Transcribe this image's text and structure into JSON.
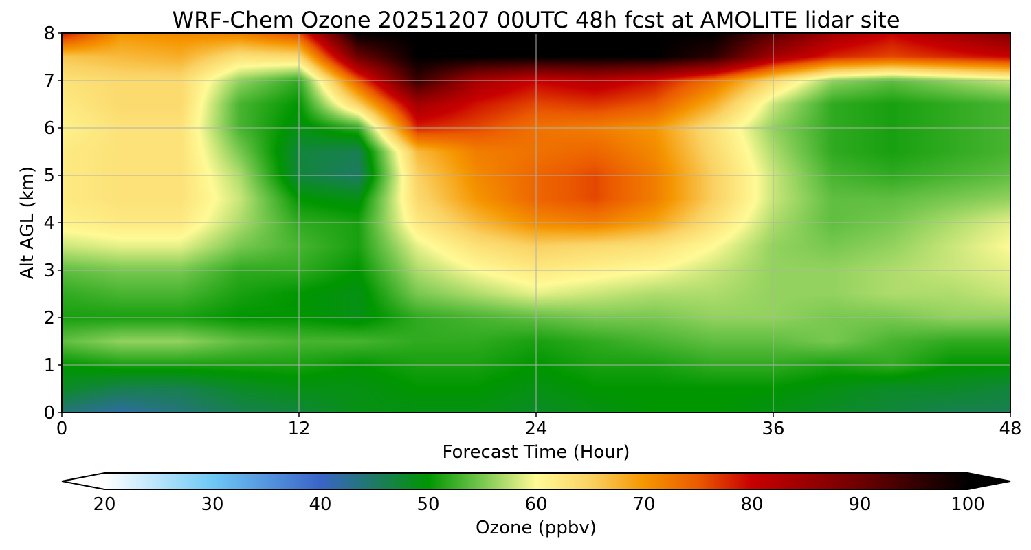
{
  "chart_data": {
    "type": "heatmap",
    "title": "WRF-Chem Ozone  20251207 00UTC 48h fcst at AMOLITE lidar site",
    "xlabel": "Forecast Time (Hour)",
    "ylabel": "Alt AGL (km)",
    "xlim": [
      0,
      48
    ],
    "ylim": [
      0,
      8
    ],
    "xticks": [
      0,
      12,
      24,
      36,
      48
    ],
    "yticks": [
      0,
      1,
      2,
      3,
      4,
      5,
      6,
      7,
      8
    ],
    "grid": true,
    "z_x": [
      0,
      3,
      6,
      9,
      12,
      15,
      18,
      21,
      24,
      27,
      30,
      33,
      36,
      39,
      42,
      45,
      48
    ],
    "z_y": [
      0,
      0.5,
      1,
      1.5,
      2,
      2.5,
      3,
      3.5,
      4,
      4.5,
      5,
      5.5,
      6,
      6.5,
      7,
      7.5,
      8
    ],
    "z": [
      [
        44,
        42,
        44,
        46,
        47,
        49,
        49,
        49,
        48,
        49,
        50,
        50,
        49,
        48,
        47,
        46,
        46
      ],
      [
        48,
        46,
        46,
        48,
        49,
        49,
        50,
        50,
        49,
        50,
        50,
        50,
        50,
        49,
        48,
        48,
        47
      ],
      [
        50,
        51,
        51,
        51,
        51,
        50,
        51,
        51,
        50,
        51,
        51,
        52,
        52,
        51,
        52,
        50,
        50
      ],
      [
        54,
        56,
        56,
        54,
        53,
        53,
        52,
        52,
        51,
        52,
        53,
        54,
        54,
        55,
        53,
        52,
        52
      ],
      [
        51,
        51,
        51,
        50,
        50,
        49,
        52,
        53,
        54,
        55,
        55,
        56,
        56,
        55,
        55,
        56,
        56
      ],
      [
        52,
        53,
        53,
        51,
        50,
        49,
        55,
        57,
        59,
        58,
        57,
        57,
        56,
        56,
        57,
        57,
        58
      ],
      [
        54,
        55,
        55,
        52,
        52,
        50,
        57,
        60,
        62,
        61,
        60,
        58,
        56,
        56,
        57,
        58,
        59
      ],
      [
        58,
        59,
        59,
        55,
        53,
        51,
        59,
        63,
        65,
        64,
        63,
        60,
        56,
        55,
        56,
        58,
        60
      ],
      [
        61,
        62,
        62,
        57,
        52,
        51,
        62,
        67,
        71,
        72,
        69,
        63,
        57,
        54,
        55,
        57,
        59
      ],
      [
        62,
        63,
        63,
        58,
        50,
        49,
        64,
        70,
        74,
        76,
        72,
        65,
        58,
        54,
        54,
        55,
        56
      ],
      [
        62,
        63,
        63,
        57,
        47,
        45,
        65,
        71,
        74,
        76,
        72,
        65,
        58,
        53,
        52,
        53,
        54
      ],
      [
        62,
        63,
        63,
        55,
        47,
        46,
        67,
        72,
        73,
        74,
        71,
        64,
        57,
        52,
        51,
        52,
        53
      ],
      [
        61,
        63,
        63,
        53,
        49,
        52,
        78,
        76,
        73,
        72,
        70,
        63,
        56,
        52,
        51,
        52,
        53
      ],
      [
        62,
        64,
        64,
        53,
        50,
        65,
        84,
        79,
        76,
        77,
        75,
        68,
        58,
        52,
        51,
        52,
        53
      ],
      [
        63,
        64,
        64,
        56,
        52,
        75,
        95,
        84,
        80,
        82,
        79,
        73,
        64,
        56,
        54,
        56,
        58
      ],
      [
        66,
        67,
        68,
        63,
        64,
        90,
        100,
        100,
        100,
        100,
        100,
        96,
        84,
        78,
        76,
        78,
        80
      ],
      [
        79,
        70,
        71,
        72,
        76,
        100,
        100,
        100,
        100,
        100,
        100,
        100,
        92,
        84,
        80,
        84,
        88
      ]
    ],
    "colorbar": {
      "label": "Ozone  (ppbv)",
      "min": 20,
      "max": 100,
      "ticks": [
        20,
        30,
        40,
        50,
        60,
        70,
        80,
        90,
        100
      ],
      "extend": "both",
      "stops": [
        {
          "v": 20,
          "color": "#ffffff"
        },
        {
          "v": 30,
          "color": "#6ec8f5"
        },
        {
          "v": 40,
          "color": "#3a64c8"
        },
        {
          "v": 45,
          "color": "#1e7a64"
        },
        {
          "v": 50,
          "color": "#009600"
        },
        {
          "v": 55,
          "color": "#78c850"
        },
        {
          "v": 60,
          "color": "#fffa96"
        },
        {
          "v": 65,
          "color": "#fad264"
        },
        {
          "v": 70,
          "color": "#f59600"
        },
        {
          "v": 75,
          "color": "#eb5a00"
        },
        {
          "v": 80,
          "color": "#c80000"
        },
        {
          "v": 90,
          "color": "#6e0000"
        },
        {
          "v": 100,
          "color": "#000000"
        }
      ]
    }
  }
}
